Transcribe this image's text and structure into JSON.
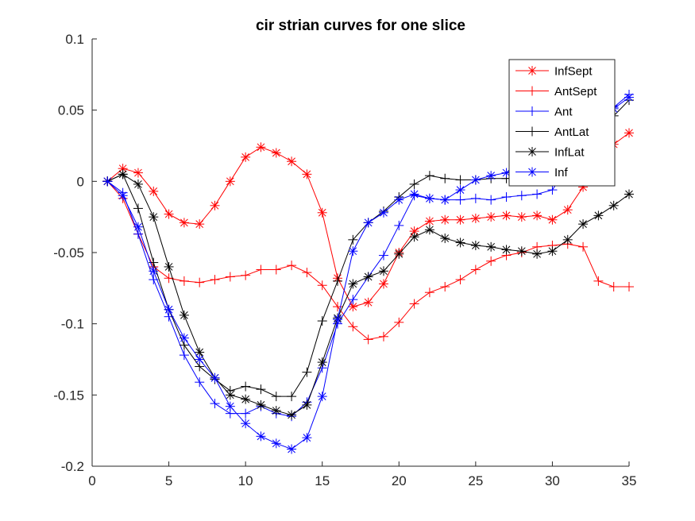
{
  "chart_data": {
    "type": "line",
    "title": "cir strian curves for one slice",
    "xlabel": "",
    "ylabel": "",
    "xlim": [
      0,
      35
    ],
    "ylim": [
      -0.2,
      0.1
    ],
    "xticks": [
      0,
      5,
      10,
      15,
      20,
      25,
      30,
      35
    ],
    "yticks": [
      -0.2,
      -0.15,
      -0.1,
      -0.05,
      0,
      0.05,
      0.1
    ],
    "ytick_labels": [
      "-0.2",
      "-0.15",
      "-0.1",
      "-0.05",
      "0",
      "0.05",
      "0.1"
    ],
    "grid": false,
    "legend_position": "top-right",
    "x": [
      1,
      2,
      3,
      4,
      5,
      6,
      7,
      8,
      9,
      10,
      11,
      12,
      13,
      14,
      15,
      16,
      17,
      18,
      19,
      20,
      21,
      22,
      23,
      24,
      25,
      26,
      27,
      28,
      29,
      30,
      31,
      32,
      33,
      34,
      35
    ],
    "series": [
      {
        "name": "InfSept",
        "color": "#ff0000",
        "marker": "asterisk",
        "values": [
          0,
          0.009,
          0.006,
          -0.007,
          -0.023,
          -0.029,
          -0.03,
          -0.017,
          0,
          0.017,
          0.024,
          0.02,
          0.014,
          0.005,
          -0.022,
          -0.068,
          -0.088,
          -0.085,
          -0.072,
          -0.05,
          -0.035,
          -0.028,
          -0.027,
          -0.027,
          -0.026,
          -0.025,
          -0.024,
          -0.025,
          -0.024,
          -0.027,
          -0.02,
          -0.004,
          0.015,
          0.026,
          0.034
        ]
      },
      {
        "name": "AntSept",
        "color": "#ff0000",
        "marker": "plus",
        "values": [
          0,
          -0.012,
          -0.037,
          -0.06,
          -0.068,
          -0.07,
          -0.071,
          -0.069,
          -0.067,
          -0.066,
          -0.062,
          -0.062,
          -0.059,
          -0.064,
          -0.073,
          -0.088,
          -0.102,
          -0.111,
          -0.109,
          -0.099,
          -0.086,
          -0.078,
          -0.074,
          -0.069,
          -0.062,
          -0.056,
          -0.052,
          -0.05,
          -0.046,
          -0.045,
          -0.044,
          -0.046,
          -0.07,
          -0.074,
          -0.074
        ]
      },
      {
        "name": "Ant",
        "color": "#0000ff",
        "marker": "plus",
        "values": [
          0,
          -0.008,
          -0.037,
          -0.069,
          -0.095,
          -0.122,
          -0.141,
          -0.156,
          -0.163,
          -0.163,
          -0.158,
          -0.163,
          -0.165,
          -0.155,
          -0.131,
          -0.1,
          -0.083,
          -0.067,
          -0.052,
          -0.031,
          -0.01,
          -0.012,
          -0.013,
          -0.013,
          -0.012,
          -0.013,
          -0.011,
          -0.01,
          -0.009,
          -0.006,
          0.01,
          0.025,
          0.04,
          0.052,
          0.061
        ]
      },
      {
        "name": "AntLat",
        "color": "#000000",
        "marker": "plus",
        "values": [
          0,
          0.005,
          -0.019,
          -0.057,
          -0.09,
          -0.115,
          -0.13,
          -0.139,
          -0.147,
          -0.144,
          -0.146,
          -0.151,
          -0.151,
          -0.134,
          -0.098,
          -0.07,
          -0.041,
          -0.029,
          -0.021,
          -0.011,
          -0.002,
          0.004,
          0.002,
          0.001,
          0.001,
          0.002,
          0.002,
          0.003,
          0.003,
          0.008,
          0.015,
          0.024,
          0.035,
          0.046,
          0.057
        ]
      },
      {
        "name": "InfLat",
        "color": "#000000",
        "marker": "asterisk",
        "values": [
          0,
          0.005,
          -0.002,
          -0.025,
          -0.06,
          -0.094,
          -0.12,
          -0.138,
          -0.15,
          -0.153,
          -0.157,
          -0.161,
          -0.164,
          -0.157,
          -0.127,
          -0.096,
          -0.072,
          -0.067,
          -0.063,
          -0.051,
          -0.039,
          -0.034,
          -0.04,
          -0.043,
          -0.045,
          -0.046,
          -0.048,
          -0.049,
          -0.051,
          -0.049,
          -0.041,
          -0.03,
          -0.024,
          -0.017,
          -0.009
        ]
      },
      {
        "name": "Inf",
        "color": "#0000ff",
        "marker": "asterisk",
        "values": [
          0,
          -0.01,
          -0.032,
          -0.063,
          -0.09,
          -0.11,
          -0.125,
          -0.138,
          -0.158,
          -0.17,
          -0.179,
          -0.184,
          -0.188,
          -0.18,
          -0.151,
          -0.097,
          -0.049,
          -0.029,
          -0.022,
          -0.013,
          -0.009,
          -0.012,
          -0.013,
          -0.006,
          0.001,
          0.004,
          0.006,
          0.011,
          0.017,
          0.023,
          0.031,
          0.038,
          0.045,
          0.051,
          0.059
        ]
      }
    ]
  }
}
